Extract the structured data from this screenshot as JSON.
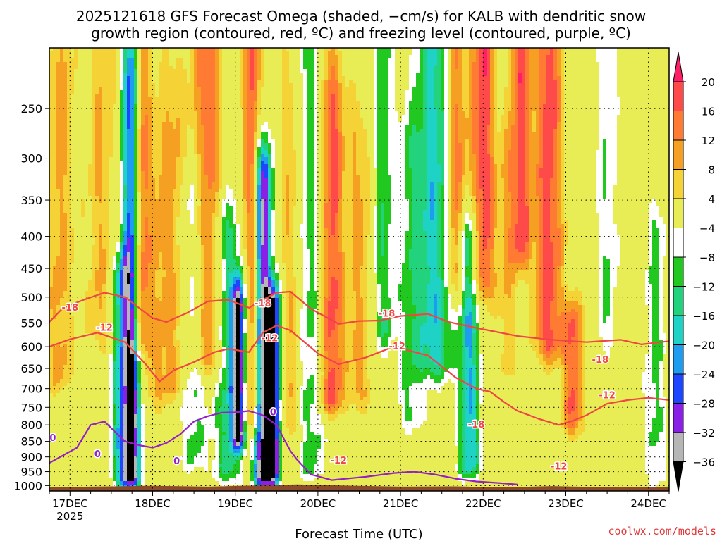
{
  "chart_data": {
    "type": "heatmap",
    "title_line1": "2025121618 GFS Forecast Omega (shaded, −cm/s) for KALB with dendritic snow",
    "title_line2": "growth region (contoured, red, ºC) and freezing level (contoured, purple, ºC)",
    "xlabel": "Forecast Time (UTC)",
    "credit": "coolwx.com/models",
    "y_axis": {
      "scale": "pressure (reversed)",
      "ticks": [
        250,
        300,
        350,
        400,
        450,
        500,
        550,
        600,
        650,
        700,
        750,
        800,
        850,
        900,
        950,
        1000
      ],
      "range": [
        200,
        1020
      ]
    },
    "x_axis": {
      "range_hours": [
        -6,
        174
      ],
      "ticks": [
        "17DEC",
        "18DEC",
        "19DEC",
        "20DEC",
        "21DEC",
        "22DEC",
        "23DEC",
        "24DEC"
      ],
      "tick_hours": [
        0,
        24,
        48,
        72,
        96,
        120,
        144,
        168
      ],
      "year_label": "2025"
    },
    "grid": "dotted",
    "colorbar": {
      "labels": [
        "20",
        "16",
        "12",
        "8",
        "4",
        "−4",
        "−8",
        "−12",
        "−16",
        "−20",
        "−24",
        "−28",
        "−32",
        "−36"
      ],
      "bounds": [
        20,
        16,
        12,
        8,
        4,
        -4,
        -8,
        -12,
        -16,
        -20,
        -24,
        -28,
        -32,
        -36
      ],
      "colors": [
        "#ff1f66",
        "#ff4a4a",
        "#ff7a33",
        "#f5a023",
        "#f5d235",
        "#e8ec55",
        "#ffffff",
        "#20c820",
        "#23d27d",
        "#1fd2c6",
        "#1e9cf0",
        "#1e46ff",
        "#8a1fe6",
        "#b6b6b6",
        "#000000"
      ]
    },
    "contour_labels": {
      "red": [
        "-18",
        "-12"
      ],
      "purple": [
        "0"
      ]
    },
    "omega_features": [
      {
        "h": -3,
        "pmin": 220,
        "pmax": 660,
        "w": 4,
        "v": 9
      },
      {
        "h": 9,
        "pmin": 200,
        "pmax": 560,
        "w": 4,
        "v": 8
      },
      {
        "h": 15,
        "pmin": 470,
        "pmax": 960,
        "w": 3,
        "v": -18
      },
      {
        "h": 18,
        "pmin": 230,
        "pmax": 960,
        "w": 2.5,
        "v": -34
      },
      {
        "h": 20,
        "pmin": 200,
        "pmax": 560,
        "w": 2.5,
        "v": 18
      },
      {
        "h": 24,
        "pmin": 300,
        "pmax": 700,
        "w": 5,
        "v": 7
      },
      {
        "h": 30,
        "pmin": 250,
        "pmax": 680,
        "w": 4,
        "v": 8
      },
      {
        "h": 36,
        "pmin": 360,
        "pmax": 900,
        "w": 4,
        "v": -9
      },
      {
        "h": 40,
        "pmin": 200,
        "pmax": 620,
        "w": 4,
        "v": 15
      },
      {
        "h": 46,
        "pmin": 400,
        "pmax": 940,
        "w": 4,
        "v": -14
      },
      {
        "h": 49,
        "pmin": 520,
        "pmax": 820,
        "w": 2,
        "v": -34
      },
      {
        "h": 53,
        "pmin": 200,
        "pmax": 780,
        "w": 3,
        "v": 17
      },
      {
        "h": 56,
        "pmin": 330,
        "pmax": 960,
        "w": 2.5,
        "v": -37
      },
      {
        "h": 59,
        "pmin": 530,
        "pmax": 950,
        "w": 2,
        "v": -34
      },
      {
        "h": 64,
        "pmin": 250,
        "pmax": 800,
        "w": 3,
        "v": 8
      },
      {
        "h": 70,
        "pmin": 200,
        "pmax": 930,
        "w": 4,
        "v": -10
      },
      {
        "h": 76,
        "pmin": 250,
        "pmax": 720,
        "w": 3.5,
        "v": 18
      },
      {
        "h": 84,
        "pmin": 300,
        "pmax": 700,
        "w": 3.5,
        "v": 9
      },
      {
        "h": 91,
        "pmin": 200,
        "pmax": 560,
        "w": 3,
        "v": -11
      },
      {
        "h": 99,
        "pmin": 300,
        "pmax": 760,
        "w": 4,
        "v": -9
      },
      {
        "h": 106,
        "pmin": 200,
        "pmax": 620,
        "w": 5,
        "v": -18
      },
      {
        "h": 112,
        "pmin": 200,
        "pmax": 450,
        "w": 3,
        "v": 16
      },
      {
        "h": 116,
        "pmin": 420,
        "pmax": 920,
        "w": 3,
        "v": -20
      },
      {
        "h": 120,
        "pmin": 200,
        "pmax": 460,
        "w": 3.5,
        "v": 19
      },
      {
        "h": 127,
        "pmin": 320,
        "pmax": 620,
        "w": 2.5,
        "v": 7
      },
      {
        "h": 131,
        "pmin": 200,
        "pmax": 400,
        "w": 3,
        "v": 18
      },
      {
        "h": 139,
        "pmin": 200,
        "pmax": 580,
        "w": 4,
        "v": 18
      },
      {
        "h": 146,
        "pmin": 560,
        "pmax": 780,
        "w": 3,
        "v": 16
      },
      {
        "h": 156,
        "pmin": 200,
        "pmax": 560,
        "w": 3,
        "v": -8
      },
      {
        "h": 170,
        "pmin": 400,
        "pmax": 940,
        "w": 3,
        "v": -9
      }
    ]
  }
}
